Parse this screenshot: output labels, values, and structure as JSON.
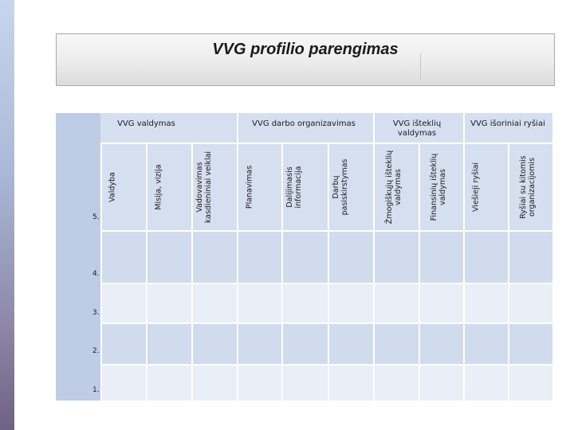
{
  "title": "VVG profilio parengimas",
  "groups": [
    "VVG valdymas",
    "VVG darbo organizavimas",
    "VVG išteklių valdymas",
    "VVG išoriniai ryšiai"
  ],
  "columns": [
    "Valdyba",
    "Misija, vizija",
    "Vadovavimas kasdieniniai veiklai",
    "Planavimas",
    "Dalijimasis informacija",
    "Darbų pasiskirstymas",
    "Žmogiškųjų išteklių valdymas",
    "Finansinių išteklių valdymas",
    "Viešieji ryšiai",
    "Ryšiai su kitomis organizacijomis"
  ],
  "row_numbers": [
    "5.",
    "4.",
    "3.",
    "2.",
    "1."
  ],
  "colors": {
    "header_bg": "#d6dff0",
    "row_dark": "#d1dbee",
    "row_light": "#e9eef7",
    "first_col": "#bfcce6"
  }
}
